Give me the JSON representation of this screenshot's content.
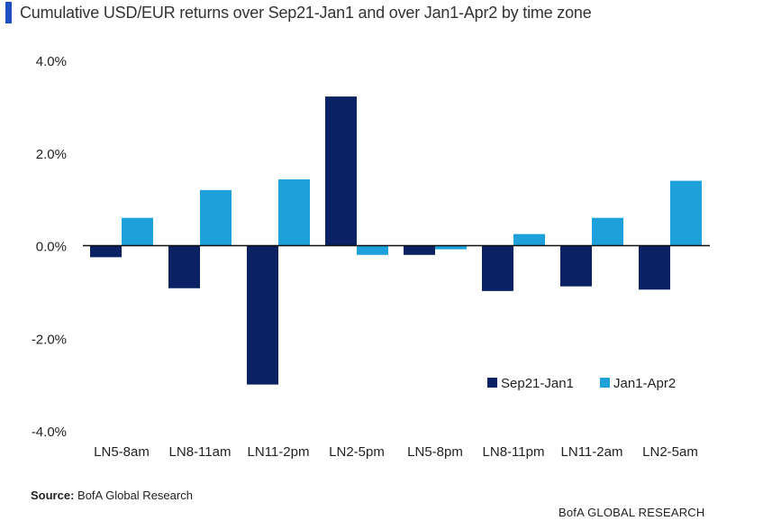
{
  "header": {
    "title": "Cumulative USD/EUR returns over Sep21-Jan1 and over Jan1-Apr2 by time zone",
    "accent_color": "#1f4fc1"
  },
  "footer": {
    "source_label": "Source:",
    "source_text": "BofA Global Research",
    "brand_text": "BofA GLOBAL RESEARCH"
  },
  "chart_data": {
    "type": "bar",
    "title": "Cumulative USD/EUR returns over Sep21-Jan1 and over Jan1-Apr2 by time zone",
    "xlabel": "",
    "ylabel": "",
    "ylim": [
      -4.0,
      4.0
    ],
    "yticks": [
      4.0,
      2.0,
      0.0,
      -2.0,
      -4.0
    ],
    "ytick_labels": [
      "4.0%",
      "2.0%",
      "0.0%",
      "-2.0%",
      "-4.0%"
    ],
    "categories": [
      "LN5-8am",
      "LN8-11am",
      "LN11-2pm",
      "LN2-5pm",
      "LN5-8pm",
      "LN8-11pm",
      "LN11-2am",
      "LN2-5am"
    ],
    "series": [
      {
        "name": "Sep21-Jan1",
        "color": "#0a2163",
        "values": [
          -0.25,
          -0.92,
          -3.0,
          3.22,
          -0.2,
          -0.98,
          -0.88,
          -0.95
        ]
      },
      {
        "name": "Jan1-Apr2",
        "color": "#1ea0db",
        "values": [
          0.6,
          1.2,
          1.43,
          -0.2,
          -0.08,
          0.25,
          0.6,
          1.4
        ]
      }
    ],
    "grid": false,
    "legend_position": "lower-right"
  }
}
